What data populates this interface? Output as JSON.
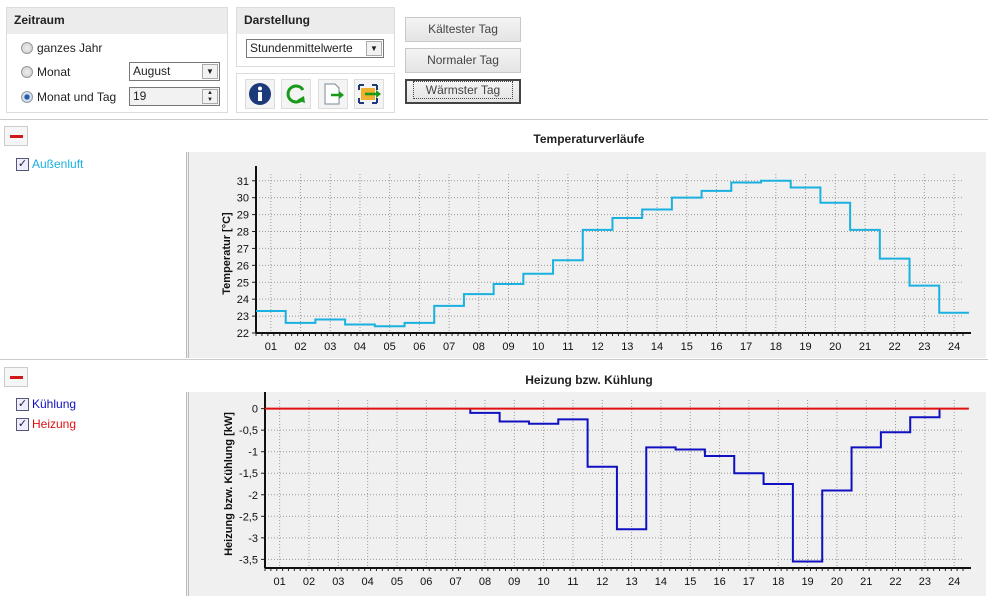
{
  "zeitraum": {
    "title": "Zeitraum",
    "options": [
      {
        "label": "ganzes Jahr",
        "selected": false
      },
      {
        "label": "Monat",
        "selected": false
      },
      {
        "label": "Monat und Tag",
        "selected": true
      }
    ],
    "month": "August",
    "day": "19"
  },
  "darstellung": {
    "title": "Darstellung",
    "mode": "Stundenmittelwerte",
    "icons": [
      "info-icon",
      "refresh-icon",
      "export-icon",
      "export-image-icon"
    ]
  },
  "buttons": {
    "coldest": "Kältester Tag",
    "normal": "Normaler Tag",
    "warmest": "Wärmster Tag"
  },
  "panel1": {
    "title": "Temperaturverläufe",
    "legend": [
      {
        "label": "Außenluft",
        "checked": true,
        "color": "#1ab0e0"
      }
    ]
  },
  "panel2": {
    "title": "Heizung bzw. Kühlung",
    "legend": [
      {
        "label": "Kühlung",
        "checked": true,
        "color": "#1010c0"
      },
      {
        "label": "Heizung",
        "checked": true,
        "color": "#e01010"
      }
    ]
  },
  "chart_data": [
    {
      "type": "line",
      "step": true,
      "title": "Temperaturverläufe",
      "xlabel": "",
      "ylabel": "Temperatur [°C]",
      "categories": [
        "01",
        "02",
        "03",
        "04",
        "05",
        "06",
        "07",
        "08",
        "09",
        "10",
        "11",
        "12",
        "13",
        "14",
        "15",
        "16",
        "17",
        "18",
        "19",
        "20",
        "21",
        "22",
        "23",
        "24"
      ],
      "yticks": [
        "22",
        "23",
        "24",
        "25",
        "26",
        "27",
        "28",
        "29",
        "30",
        "31"
      ],
      "ylim": [
        22,
        31.4
      ],
      "grid": true,
      "series": [
        {
          "name": "Außenluft",
          "color": "#1ab0e0",
          "values": [
            23.3,
            22.6,
            22.8,
            22.5,
            22.4,
            22.6,
            23.6,
            24.3,
            24.9,
            25.5,
            26.3,
            28.1,
            28.8,
            29.3,
            30.0,
            30.4,
            30.9,
            31.0,
            30.6,
            29.7,
            28.1,
            26.4,
            24.8,
            23.2
          ]
        }
      ]
    },
    {
      "type": "line",
      "step": true,
      "title": "Heizung bzw. Kühlung",
      "xlabel": "",
      "ylabel": "Heizung bzw. Kühlung [kW]",
      "categories": [
        "01",
        "02",
        "03",
        "04",
        "05",
        "06",
        "07",
        "08",
        "09",
        "10",
        "11",
        "12",
        "13",
        "14",
        "15",
        "16",
        "17",
        "18",
        "19",
        "20",
        "21",
        "22",
        "23",
        "24"
      ],
      "yticks": [
        "0",
        "-0,5",
        "-1",
        "-1,5",
        "-2",
        "-2,5",
        "-3",
        "-3,5"
      ],
      "ylim": [
        -3.7,
        0.2
      ],
      "grid": true,
      "series": [
        {
          "name": "Kühlung",
          "color": "#1010c0",
          "values": [
            null,
            null,
            null,
            null,
            null,
            null,
            null,
            -0.1,
            -0.3,
            -0.35,
            -0.25,
            -1.35,
            -2.8,
            -0.9,
            -0.95,
            -1.1,
            -1.5,
            -1.75,
            -3.55,
            -1.9,
            -0.9,
            -0.55,
            -0.2,
            null
          ]
        },
        {
          "name": "Heizung",
          "color": "#e01010",
          "values": [
            0,
            0,
            0,
            0,
            0,
            0,
            0,
            0,
            0,
            0,
            0,
            0,
            0,
            0,
            0,
            0,
            0,
            0,
            0,
            0,
            0,
            0,
            0,
            0
          ]
        }
      ]
    }
  ]
}
